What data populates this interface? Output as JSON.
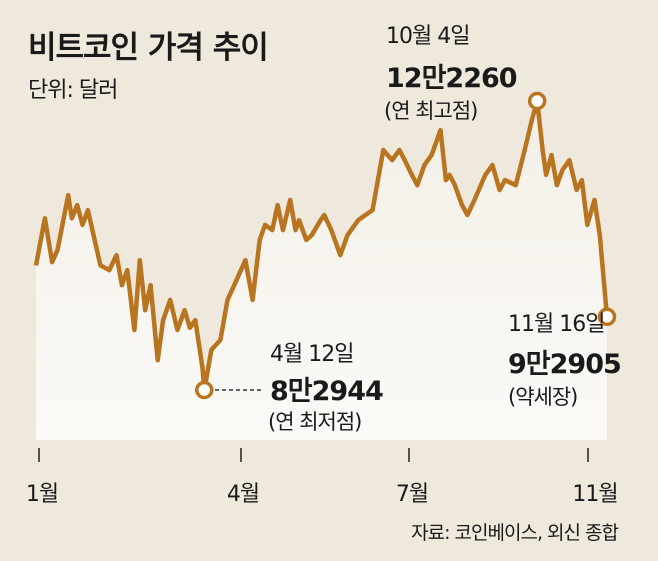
{
  "chart_data": {
    "type": "line",
    "title": "비트코인 가격 추이",
    "unit_label": "단위: 달러",
    "source": "자료: 코인베이스, 외신 종합",
    "xlabel": "",
    "ylabel": "",
    "x_unit": "day of year (approx.)",
    "x_ticks": [
      "1월",
      "4월",
      "7월",
      "11월"
    ],
    "grid": false,
    "line_color": "#b8741f",
    "ylim": [
      82944,
      122260
    ],
    "points": [
      [
        0,
        99900
      ],
      [
        5,
        106300
      ],
      [
        9,
        100350
      ],
      [
        12,
        102000
      ],
      [
        18,
        109450
      ],
      [
        20,
        106300
      ],
      [
        23,
        108100
      ],
      [
        26,
        105400
      ],
      [
        29,
        107400
      ],
      [
        36,
        99900
      ],
      [
        41,
        99250
      ],
      [
        45,
        101300
      ],
      [
        48,
        97200
      ],
      [
        51,
        99250
      ],
      [
        55,
        91100
      ],
      [
        58,
        100600
      ],
      [
        61,
        93800
      ],
      [
        64,
        97200
      ],
      [
        68,
        87000
      ],
      [
        71,
        92450
      ],
      [
        75,
        95200
      ],
      [
        79,
        91100
      ],
      [
        83,
        93800
      ],
      [
        86,
        91400
      ],
      [
        89,
        92450
      ],
      [
        93,
        85950
      ],
      [
        94,
        82944
      ],
      [
        98,
        88400
      ],
      [
        103,
        89750
      ],
      [
        107,
        95200
      ],
      [
        112,
        97900
      ],
      [
        117,
        100600
      ],
      [
        121,
        95200
      ],
      [
        125,
        103350
      ],
      [
        128,
        105400
      ],
      [
        132,
        104700
      ],
      [
        135,
        108100
      ],
      [
        138,
        104700
      ],
      [
        142,
        108800
      ],
      [
        145,
        104700
      ],
      [
        147,
        106050
      ],
      [
        151,
        103350
      ],
      [
        154,
        104000
      ],
      [
        159,
        106050
      ],
      [
        161,
        106750
      ],
      [
        165,
        104700
      ],
      [
        170,
        101300
      ],
      [
        174,
        104000
      ],
      [
        180,
        106050
      ],
      [
        184,
        106750
      ],
      [
        188,
        107400
      ],
      [
        194,
        115600
      ],
      [
        199,
        114200
      ],
      [
        203,
        115600
      ],
      [
        206,
        114200
      ],
      [
        210,
        112200
      ],
      [
        213,
        110800
      ],
      [
        217,
        113550
      ],
      [
        221,
        114900
      ],
      [
        226,
        118300
      ],
      [
        229,
        111500
      ],
      [
        231,
        112200
      ],
      [
        234,
        110800
      ],
      [
        238,
        108100
      ],
      [
        241,
        106750
      ],
      [
        245,
        108800
      ],
      [
        251,
        112200
      ],
      [
        255,
        113550
      ],
      [
        259,
        110150
      ],
      [
        262,
        111500
      ],
      [
        268,
        110800
      ],
      [
        273,
        115600
      ],
      [
        277,
        119650
      ],
      [
        280,
        122260
      ],
      [
        283,
        115600
      ],
      [
        285,
        112200
      ],
      [
        288,
        114900
      ],
      [
        291,
        110800
      ],
      [
        294,
        112850
      ],
      [
        298,
        114200
      ],
      [
        302,
        110150
      ],
      [
        305,
        111500
      ],
      [
        308,
        105400
      ],
      [
        312,
        108800
      ],
      [
        315,
        104000
      ],
      [
        319,
        92905
      ]
    ],
    "annotations": {
      "high": {
        "day": 280,
        "value": 122260,
        "date": "10월 4일",
        "value_label": "12만2260",
        "note": "(연 최고점)"
      },
      "low": {
        "day": 94,
        "value": 82944,
        "date": "4월 12일",
        "value_label": "8만2944",
        "note": "(연 최저점)"
      },
      "last": {
        "day": 319,
        "value": 92905,
        "date": "11월 16일",
        "value_label": "9만2905",
        "note": "(약세장)"
      }
    }
  }
}
